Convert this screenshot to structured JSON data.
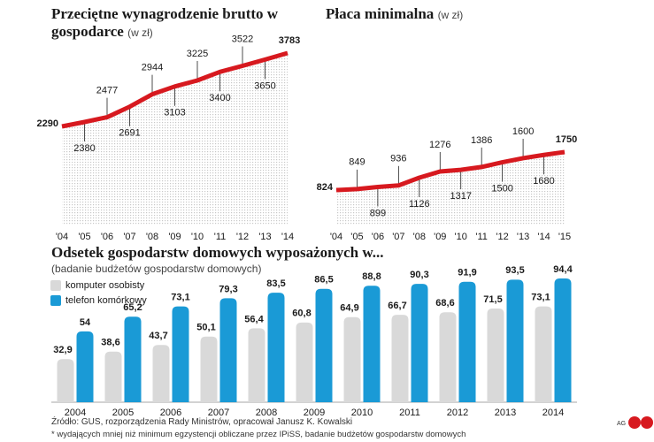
{
  "chart_data": [
    {
      "type": "line",
      "title": "Przeciętne wynagrodzenie brutto w gospodarce",
      "subtitle": "(w zł)",
      "x": [
        "'04",
        "'05",
        "'06",
        "'07",
        "'08",
        "'09",
        "'10",
        "'11",
        "'12",
        "'13",
        "'14"
      ],
      "values": [
        2290,
        2380,
        2477,
        2691,
        2944,
        3103,
        3225,
        3400,
        3522,
        3650,
        3783
      ],
      "color": "#d7191f"
    },
    {
      "type": "line",
      "title": "Płaca minimalna",
      "subtitle": "(w zł)",
      "x": [
        "'04",
        "'05",
        "'06",
        "'07",
        "'08",
        "'09",
        "'10",
        "'11",
        "'12",
        "'13",
        "'14",
        "'15"
      ],
      "values": [
        824,
        849,
        899,
        936,
        1126,
        1276,
        1317,
        1386,
        1500,
        1600,
        1680,
        1750
      ],
      "color": "#d7191f"
    },
    {
      "type": "bar",
      "title": "Odsetek gospodarstw domowych wyposażonych w...",
      "subtitle": "(badanie budżetów gospodarstw domowych)",
      "categories": [
        "2004",
        "2005",
        "2006",
        "2007",
        "2008",
        "2009",
        "2010",
        "2011",
        "2012",
        "2013",
        "2014"
      ],
      "series": [
        {
          "name": "komputer osobisty",
          "color": "#d9d9d9",
          "values": [
            32.9,
            38.6,
            43.7,
            50.1,
            56.4,
            60.8,
            64.9,
            66.7,
            68.6,
            71.5,
            73.1
          ],
          "value_labels": [
            "32,9",
            "38,6",
            "43,7",
            "50,1",
            "56,4",
            "60,8",
            "64,9",
            "66,7",
            "68,6",
            "71,5",
            "73,1"
          ]
        },
        {
          "name": "telefon komórkowy",
          "color": "#1a9ad6",
          "values": [
            54,
            65.2,
            73.1,
            79.3,
            83.5,
            86.5,
            88.8,
            90.3,
            91.9,
            93.5,
            94.4
          ],
          "value_labels": [
            "54",
            "65,2",
            "73,1",
            "79,3",
            "83,5",
            "86,5",
            "88,8",
            "90,3",
            "91,9",
            "93,5",
            "94,4"
          ]
        }
      ]
    }
  ],
  "source": "Źródło: GUS, rozporządzenia Rady Ministrów, opracował Janusz K. Kowalski",
  "footnote": "* wydających mniej niż minimum egzystencji obliczane przez IPiSS, badanie budżetów gospodarstw domowych",
  "credit": "AG"
}
